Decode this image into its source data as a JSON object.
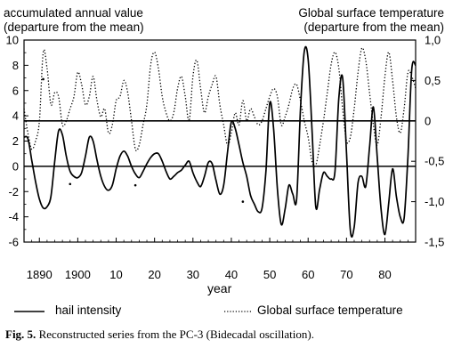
{
  "chart_data": {
    "type": "line",
    "left_axis_title": [
      "accumulated annual value",
      "(departure from the mean)"
    ],
    "right_axis_title": [
      "Global surface temperature",
      "(departure from the mean)"
    ],
    "xlabel": "year",
    "xlim": [
      1886,
      1988
    ],
    "ylim_left": [
      -6,
      10
    ],
    "ylim_right": [
      -1.5,
      1.0
    ],
    "x_ticks": [
      1890,
      1900,
      1910,
      1920,
      1930,
      1940,
      1950,
      1960,
      1970,
      1980
    ],
    "x_tick_labels": [
      "1890",
      "1900",
      "10",
      "20",
      "30",
      "40",
      "50",
      "60",
      "70",
      "80"
    ],
    "y_left_ticks": [
      -6,
      -4,
      -2,
      0,
      2,
      4,
      6,
      8,
      10
    ],
    "y_left_tick_labels": [
      "-6",
      "-4",
      "-2",
      "0",
      "2",
      "4",
      "6",
      "8",
      "10"
    ],
    "y_right_ticks": [
      1.0,
      0.5,
      0,
      -0.5,
      -1.0,
      -1.5
    ],
    "y_right_tick_labels": [
      "1,0",
      "0,5",
      "0",
      "-0,5",
      "-1,0",
      "-1,5"
    ],
    "reference_lines": [
      {
        "axis": "left",
        "value": 0
      },
      {
        "axis": "right",
        "value": 0
      }
    ],
    "series": [
      {
        "name": "hail intensity",
        "axis": "left",
        "style": "solid",
        "x": [
          1886,
          1887,
          1888,
          1889,
          1890,
          1891,
          1892,
          1893,
          1894,
          1895,
          1896,
          1897,
          1898,
          1899,
          1900,
          1901,
          1902,
          1903,
          1904,
          1905,
          1906,
          1907,
          1908,
          1909,
          1910,
          1911,
          1912,
          1913,
          1914,
          1915,
          1916,
          1917,
          1918,
          1919,
          1920,
          1921,
          1922,
          1923,
          1924,
          1925,
          1926,
          1927,
          1928,
          1929,
          1930,
          1931,
          1932,
          1933,
          1934,
          1935,
          1936,
          1937,
          1938,
          1939,
          1940,
          1941,
          1942,
          1943,
          1944,
          1945,
          1946,
          1947,
          1948,
          1949,
          1950,
          1951,
          1952,
          1953,
          1954,
          1955,
          1956,
          1957,
          1958,
          1959,
          1960,
          1961,
          1962,
          1963,
          1964,
          1965,
          1966,
          1967,
          1968,
          1969,
          1970,
          1971,
          1972,
          1973,
          1974,
          1975,
          1976,
          1977,
          1978,
          1979,
          1980,
          1981,
          1982,
          1983,
          1984,
          1985,
          1986,
          1987,
          1988
        ],
        "values": [
          2.3,
          2.2,
          0.5,
          -1.2,
          -2.6,
          -3.3,
          -3.2,
          -2.4,
          0.4,
          2.8,
          2.5,
          0.8,
          -0.4,
          -0.8,
          -0.9,
          -0.5,
          0.8,
          2.3,
          2.0,
          0.5,
          -0.8,
          -1.6,
          -1.9,
          -1.5,
          -0.2,
          0.8,
          1.2,
          0.8,
          0.0,
          -0.6,
          -0.9,
          -0.4,
          0.2,
          0.7,
          1.0,
          1.0,
          0.4,
          -0.4,
          -1.0,
          -0.8,
          -0.5,
          -0.3,
          0.1,
          0.4,
          -0.5,
          -1.2,
          -1.6,
          -0.8,
          0.3,
          0.2,
          -1.1,
          -2.2,
          -1.5,
          1.1,
          3.5,
          3.0,
          1.7,
          0.3,
          -0.8,
          -2.3,
          -3.0,
          -3.6,
          -3.3,
          -0.4,
          5.0,
          3.0,
          -1.8,
          -4.6,
          -3.4,
          -1.5,
          -2.2,
          -2.6,
          4.5,
          9.1,
          8.5,
          3.0,
          -3.2,
          -1.8,
          -0.5,
          -0.8,
          -1.0,
          -0.4,
          5.4,
          7.0,
          1.0,
          -5.1,
          -4.8,
          -1.3,
          -0.8,
          -1.6,
          1.5,
          4.7,
          0.7,
          -3.4,
          -5.4,
          -2.9,
          -0.2,
          -2.4,
          -4.0,
          -4.1,
          0.8,
          7.7,
          8.0
        ]
      },
      {
        "name": "Global surface temperature",
        "axis": "right",
        "style": "dotted",
        "x": [
          1886,
          1887,
          1888,
          1889,
          1890,
          1891,
          1892,
          1893,
          1894,
          1895,
          1896,
          1897,
          1898,
          1899,
          1900,
          1901,
          1902,
          1903,
          1904,
          1905,
          1906,
          1907,
          1908,
          1909,
          1910,
          1911,
          1912,
          1913,
          1914,
          1915,
          1916,
          1917,
          1918,
          1919,
          1920,
          1921,
          1922,
          1923,
          1924,
          1925,
          1926,
          1927,
          1928,
          1929,
          1930,
          1931,
          1932,
          1933,
          1934,
          1935,
          1936,
          1937,
          1938,
          1939,
          1940,
          1941,
          1942,
          1943,
          1944,
          1945,
          1946,
          1947,
          1948,
          1949,
          1950,
          1951,
          1952,
          1953,
          1954,
          1955,
          1956,
          1957,
          1958,
          1959,
          1960,
          1961,
          1962,
          1963,
          1964,
          1965,
          1966,
          1967,
          1968,
          1969,
          1970,
          1971,
          1972,
          1973,
          1974,
          1975,
          1976,
          1977,
          1978,
          1979,
          1980,
          1981,
          1982,
          1983,
          1984,
          1985,
          1986,
          1987,
          1988
        ],
        "values": [
          0.15,
          -0.15,
          -0.35,
          -0.25,
          0.0,
          0.85,
          0.65,
          0.2,
          0.35,
          0.3,
          -0.05,
          0.0,
          0.15,
          0.3,
          0.6,
          0.45,
          0.2,
          0.3,
          0.55,
          0.25,
          0.05,
          0.15,
          -0.15,
          -0.05,
          0.25,
          0.3,
          0.5,
          0.35,
          0.0,
          -0.35,
          -0.3,
          -0.05,
          0.2,
          0.7,
          0.85,
          0.65,
          0.3,
          0.1,
          0.0,
          0.1,
          0.4,
          0.55,
          0.3,
          0.0,
          0.55,
          0.75,
          0.4,
          0.1,
          0.3,
          0.45,
          0.55,
          0.2,
          -0.05,
          -0.3,
          -0.15,
          0.1,
          -0.05,
          0.25,
          0.0,
          0.15,
          0.05,
          -0.05,
          0.0,
          0.15,
          0.3,
          0.4,
          0.3,
          -0.05,
          0.05,
          0.2,
          0.4,
          0.45,
          0.25,
          0.0,
          -0.2,
          -0.5,
          -0.55,
          -0.3,
          0.0,
          0.35,
          0.7,
          0.85,
          0.65,
          0.15,
          -0.25,
          -0.2,
          0.15,
          0.6,
          0.9,
          0.75,
          0.35,
          -0.05,
          -0.3,
          0.05,
          0.55,
          0.85,
          0.5,
          0.05,
          -0.15,
          0.15,
          0.6,
          0.55,
          0.4
        ]
      },
      {
        "name": "",
        "axis": "left",
        "style": "points",
        "x": [
          1891,
          1898,
          1915,
          1943
        ],
        "values": [
          6.9,
          -1.4,
          -1.5,
          -2.8
        ]
      }
    ]
  },
  "legend": [
    {
      "label": "hail intensity",
      "style": "solid"
    },
    {
      "label": "Global surface temperature",
      "style": "dotted"
    }
  ],
  "caption": {
    "label": "Fig. 5.",
    "text": "Reconstructed series from the PC-3 (Bidecadal oscillation)."
  }
}
